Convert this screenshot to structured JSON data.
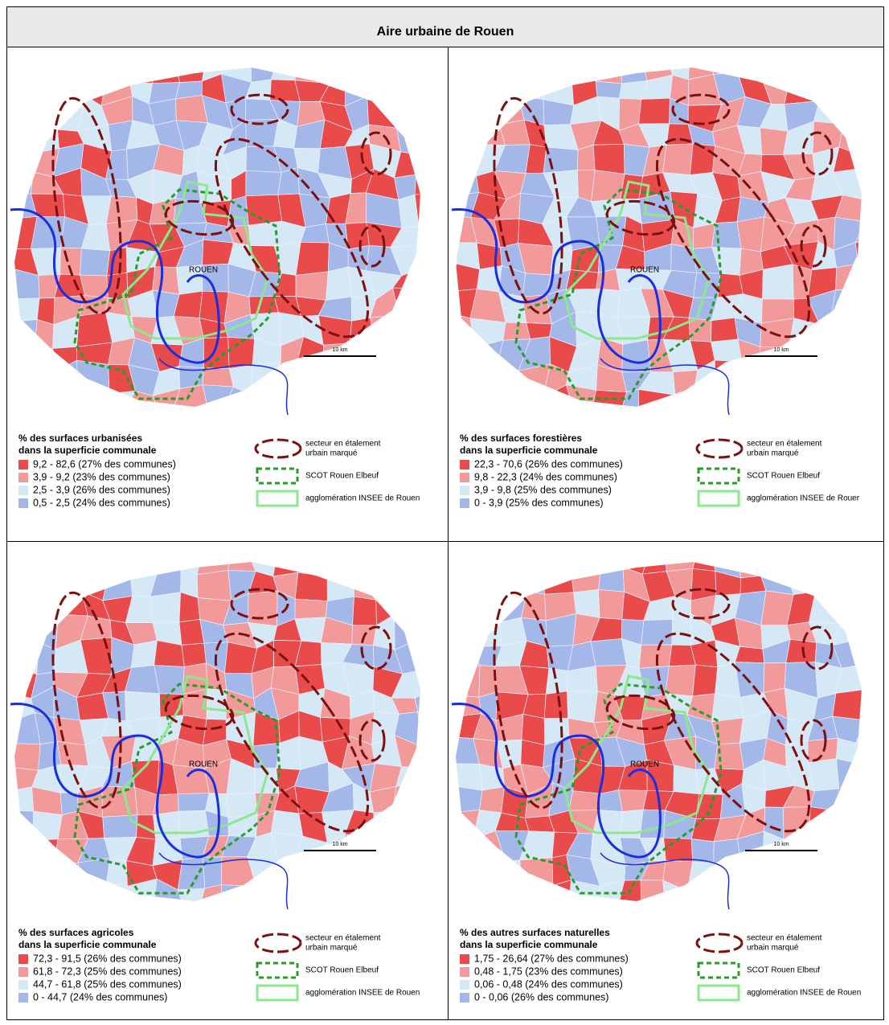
{
  "header": {
    "title": "Aire urbaine de Rouen"
  },
  "map_labels": {
    "city": "ROUEN",
    "scale": "10 km"
  },
  "panels": [
    {
      "legend_title": [
        "% des surfaces urbanisées",
        "dans la superficie communale"
      ],
      "classes": [
        {
          "color": "#e94b4b",
          "label": "9,2 - 82,6 (27% des communes)"
        },
        {
          "color": "#f29a9a",
          "label": "3,9 - 9,2 (23% des communes)"
        },
        {
          "color": "#d4e8f6",
          "label": "2,5 - 3,9 (26% des communes)"
        },
        {
          "color": "#a3b8e8",
          "label": "0,5 - 2,5 (24% des communes)"
        }
      ],
      "key": [
        "secteur en étalement",
        "urbain marqué",
        "SCOT Rouen Elbeuf",
        "agglomération INSEE de Rouen"
      ]
    },
    {
      "legend_title": [
        "% des surfaces forestières",
        "dans la superficie communale"
      ],
      "classes": [
        {
          "color": "#e94b4b",
          "label": "22,3 - 70,6 (26% des communes)"
        },
        {
          "color": "#f29a9a",
          "label": "9,8 - 22,3 (24% des communes)"
        },
        {
          "color": "#d4e8f6",
          "label": "3,9 - 9,8 (25% des communes)"
        },
        {
          "color": "#a3b8e8",
          "label": "0   - 3,9 (25% des communes)"
        }
      ],
      "key": [
        "secteur en étalement",
        "urbain marqué",
        "SCOT Rouen Elbeuf",
        "agglomération INSEE de Rouer"
      ]
    },
    {
      "legend_title": [
        "% des surfaces agricoles",
        "dans la superficie communale"
      ],
      "classes": [
        {
          "color": "#e94b4b",
          "label": "72,3 - 91,5 (26% des communes)"
        },
        {
          "color": "#f29a9a",
          "label": "61,8 - 72,3 (25% des communes)"
        },
        {
          "color": "#d4e8f6",
          "label": "44,7 - 61,8 (25% des communes)"
        },
        {
          "color": "#a3b8e8",
          "label": "0    - 44,7 (24% des communes)"
        }
      ],
      "key": [
        "secteur en étalement",
        "urbain marqué",
        "SCOT Rouen Elbeuf",
        "agglomération INSEE de Rouen"
      ]
    },
    {
      "legend_title": [
        "% des autres surfaces naturelles",
        "dans la superficie communale"
      ],
      "classes": [
        {
          "color": "#e94b4b",
          "label": "1,75 - 26,64 (27% des communes)"
        },
        {
          "color": "#f29a9a",
          "label": "0,48 - 1,75 (23% des communes)"
        },
        {
          "color": "#d4e8f6",
          "label": "0,06 - 0,48 (24% des communes)"
        },
        {
          "color": "#a3b8e8",
          "label": "0     - 0,06 (26% des communes)"
        }
      ],
      "key": [
        "secteur en étalement",
        "urbain marqué",
        "SCOT Rouen Elbeuf",
        "agglomération INSEE de Rouen"
      ]
    }
  ]
}
